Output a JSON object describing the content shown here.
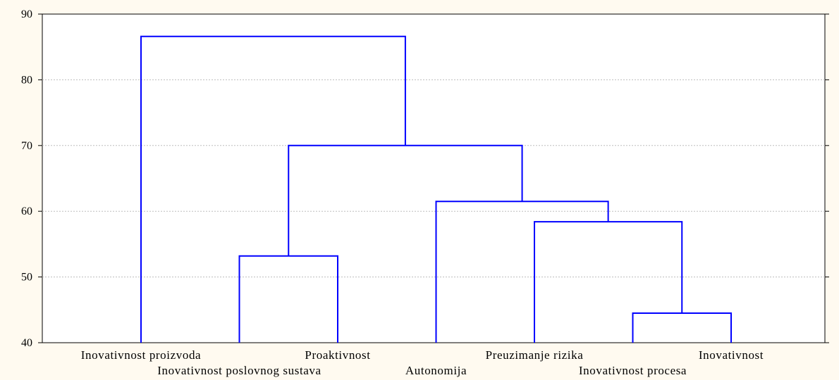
{
  "chart_data": {
    "type": "dendrogram",
    "ylim": [
      40,
      90
    ],
    "yticks": [
      40,
      50,
      60,
      70,
      80,
      90
    ],
    "grid": true,
    "leaves": [
      "Inovativnost proizvoda",
      "Inovativnost poslovnog sustava",
      "Proaktivnost",
      "Autonomija",
      "Preuzimanje rizika",
      "Inovativnost procesa",
      "Inovativnost"
    ],
    "merges": [
      {
        "id": "m1",
        "left": "leaf:5",
        "right": "leaf:6",
        "height": 44.5
      },
      {
        "id": "m2",
        "left": "leaf:1",
        "right": "leaf:2",
        "height": 53.2
      },
      {
        "id": "m3",
        "left": "leaf:4",
        "right": "m1",
        "height": 58.4
      },
      {
        "id": "m4",
        "left": "leaf:3",
        "right": "m3",
        "height": 61.5
      },
      {
        "id": "m5",
        "left": "m2",
        "right": "m4",
        "height": 70.0
      },
      {
        "id": "m6",
        "left": "leaf:0",
        "right": "m5",
        "height": 86.6
      }
    ],
    "colors": {
      "link": "#0000ff",
      "grid": "#bdbdbd",
      "background": "#fffaf0"
    }
  }
}
